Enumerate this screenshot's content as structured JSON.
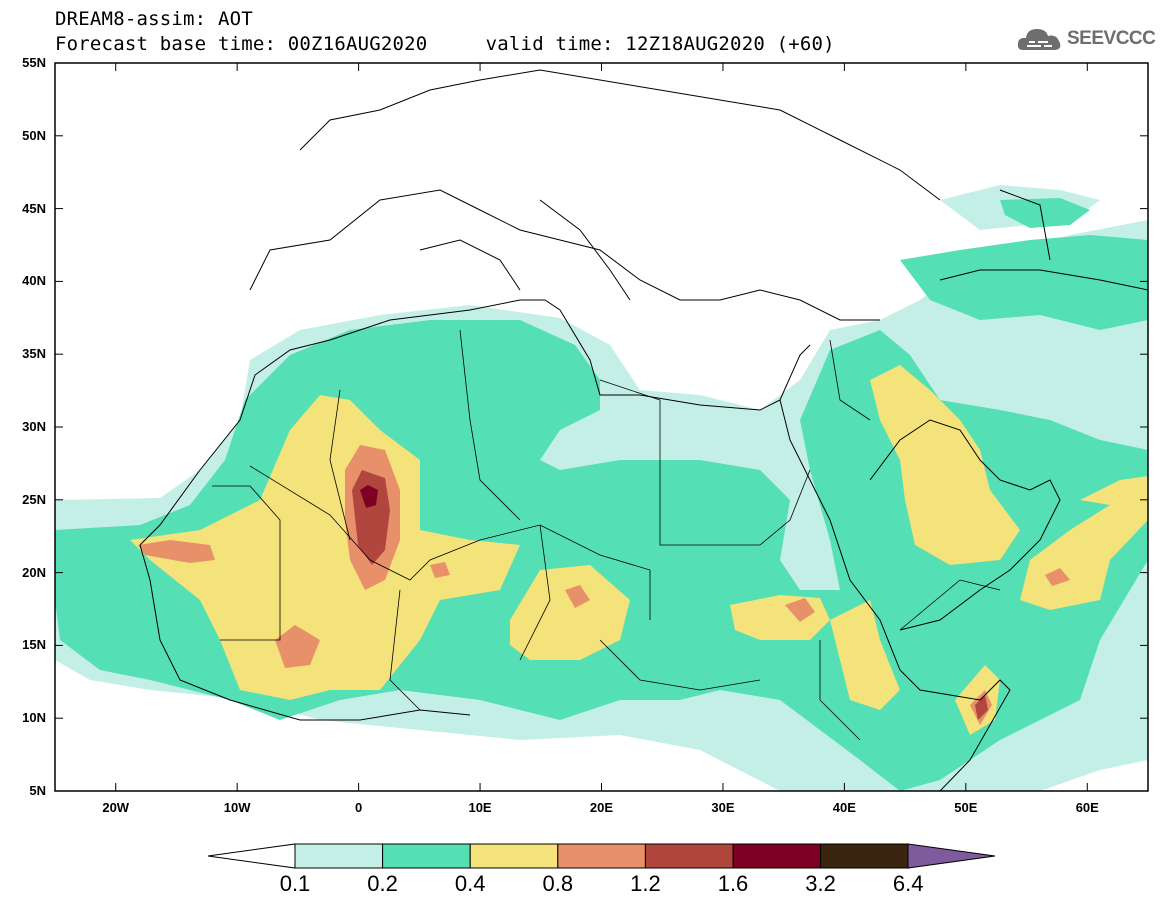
{
  "header": {
    "line1": "DREAM8-assim: AOT",
    "line2": "Forecast base time: 00Z16AUG2020     valid time: 12Z18AUG2020 (+60)"
  },
  "logo": {
    "text": "SEEVCCC",
    "icon": "cloud-logo-icon"
  },
  "map": {
    "lat_range": [
      5,
      55
    ],
    "lon_range": [
      -25,
      65
    ],
    "lat_ticks": [
      {
        "v": 55,
        "label": "55N"
      },
      {
        "v": 50,
        "label": "50N"
      },
      {
        "v": 45,
        "label": "45N"
      },
      {
        "v": 40,
        "label": "40N"
      },
      {
        "v": 35,
        "label": "35N"
      },
      {
        "v": 30,
        "label": "30N"
      },
      {
        "v": 25,
        "label": "25N"
      },
      {
        "v": 20,
        "label": "20N"
      },
      {
        "v": 15,
        "label": "15N"
      },
      {
        "v": 10,
        "label": "10N"
      },
      {
        "v": 5,
        "label": "5N"
      }
    ],
    "lon_ticks": [
      {
        "v": -20,
        "label": "20W"
      },
      {
        "v": -10,
        "label": "10W"
      },
      {
        "v": 0,
        "label": "0"
      },
      {
        "v": 10,
        "label": "10E"
      },
      {
        "v": 20,
        "label": "20E"
      },
      {
        "v": 30,
        "label": "30E"
      },
      {
        "v": 40,
        "label": "40E"
      },
      {
        "v": 50,
        "label": "50E"
      },
      {
        "v": 60,
        "label": "60E"
      }
    ]
  },
  "colorbar": {
    "under_color": "#ffffff",
    "over_color": "#7f5a9c",
    "colors": [
      "#c4efe7",
      "#54dfb5",
      "#f3e37a",
      "#e8906a",
      "#b0463e",
      "#7e0022",
      "#3b2410"
    ],
    "labels": [
      "0.1",
      "0.2",
      "0.4",
      "0.8",
      "1.2",
      "1.6",
      "3.2",
      "6.4"
    ]
  }
}
